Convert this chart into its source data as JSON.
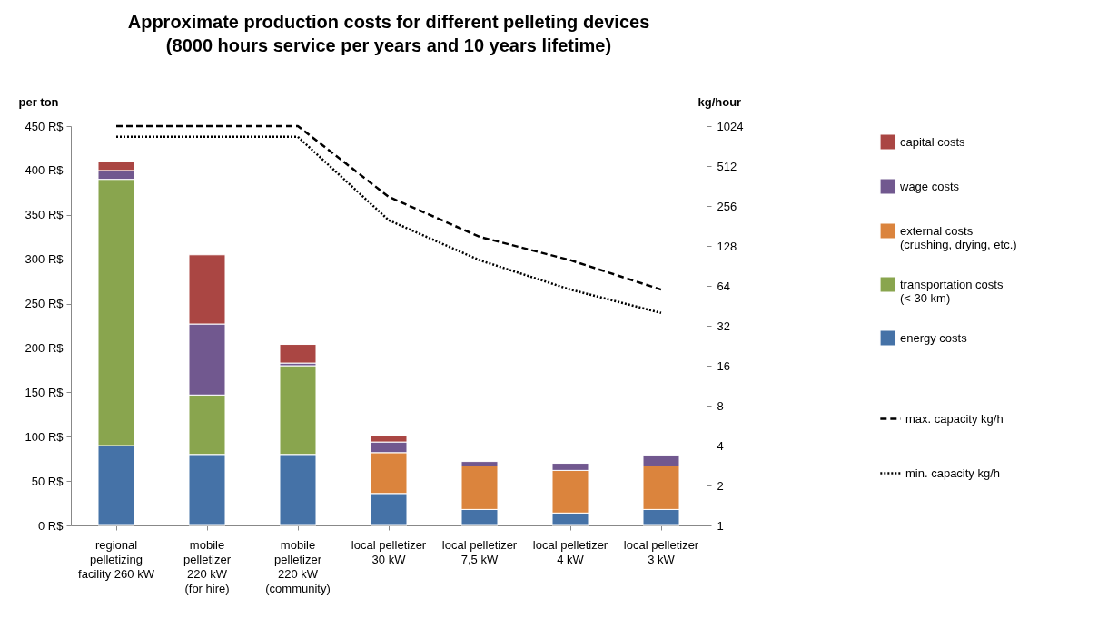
{
  "chart_data": {
    "type": "bar",
    "title": "Approximate production costs for different pelleting devices\n(8000 hours service per years and 10 years lifetime)",
    "ylabel": "per ton",
    "y2label": "kg/hour",
    "stacked": true,
    "legend": "right",
    "categories": [
      "regional\npelletizing\nfacility 260 kW",
      "mobile\npelletizer\n220 kW\n(for hire)",
      "mobile\npelletizer\n220 kW\n(community)",
      "local pelletizer\n30 kW",
      "local pelletizer\n7,5 kW",
      "local pelletizer\n4 kW",
      "local pelletizer\n3 kW"
    ],
    "series": [
      {
        "name": "energy costs",
        "color": "#4572a7",
        "values": [
          90,
          80,
          80,
          36,
          18,
          14,
          18
        ]
      },
      {
        "name": "transportation costs\n(< 30 km)",
        "color": "#89a54e",
        "values": [
          300,
          67,
          100,
          null,
          null,
          null,
          null
        ]
      },
      {
        "name": "external costs\n(crushing, drying, etc.)",
        "color": "#db843d",
        "values": [
          null,
          null,
          null,
          46,
          49,
          48,
          49
        ]
      },
      {
        "name": "wage costs",
        "color": "#71588f",
        "values": [
          10,
          80,
          3,
          12,
          5,
          8,
          12
        ]
      },
      {
        "name": "capital costs",
        "color": "#aa4643",
        "values": [
          10,
          78,
          21,
          7,
          null,
          null,
          null
        ]
      },
      {
        "name": "max. capacity kg/h",
        "type": "line",
        "axis": "y2",
        "line_style": "dashed",
        "color": "#000000",
        "values": [
          1024,
          1024,
          1024,
          300,
          150,
          100,
          60
        ]
      },
      {
        "name": "min. capacity kg/h",
        "type": "line",
        "axis": "y2",
        "line_style": "dotted",
        "color": "#000000",
        "values": [
          850,
          850,
          850,
          200,
          100,
          60,
          40
        ]
      }
    ],
    "ylim": [
      0,
      450
    ],
    "yticks": [
      {
        "value": 0,
        "label": "0 R$"
      },
      {
        "value": 50,
        "label": "50 R$"
      },
      {
        "value": 100,
        "label": "100 R$"
      },
      {
        "value": 150,
        "label": "150 R$"
      },
      {
        "value": 200,
        "label": "200 R$"
      },
      {
        "value": 250,
        "label": "250 R$"
      },
      {
        "value": 300,
        "label": "300 R$"
      },
      {
        "value": 350,
        "label": "350 R$"
      },
      {
        "value": 400,
        "label": "400 R$"
      },
      {
        "value": 450,
        "label": "450 R$"
      }
    ],
    "log": "y2",
    "y2lim": [
      1,
      1024
    ],
    "y2ticks": [
      1,
      2,
      4,
      8,
      16,
      32,
      64,
      128,
      256,
      512,
      1024
    ]
  }
}
